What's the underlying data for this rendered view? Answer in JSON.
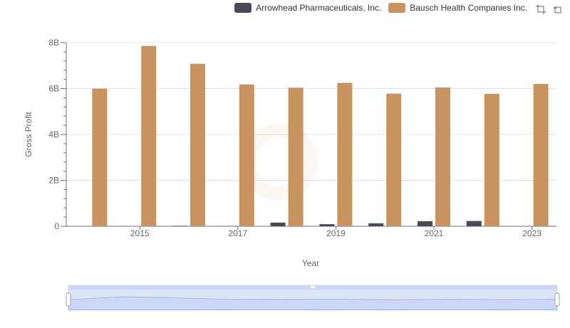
{
  "chart_data": {
    "type": "bar",
    "ylabel": "Gross Profit",
    "xlabel": "Year",
    "categories": [
      "2014",
      "2015",
      "2016",
      "2017",
      "2018",
      "2019",
      "2020",
      "2021",
      "2022",
      "2023"
    ],
    "x_tick_labels": [
      "2015",
      "2017",
      "2019",
      "2021",
      "2023"
    ],
    "y_tick_labels": [
      "0",
      "2B",
      "4B",
      "6B",
      "8B"
    ],
    "ylim": [
      0,
      8000000000
    ],
    "series": [
      {
        "name": "Arrowhead Pharmaceuticals, Inc.",
        "color": "#4a4a56",
        "values": [
          0,
          0,
          20000000,
          10000000,
          160000000,
          90000000,
          130000000,
          220000000,
          230000000,
          0
        ]
      },
      {
        "name": "Bausch Health Companies Inc.",
        "color": "#c9935f",
        "values": [
          6000000000,
          7860000000,
          7080000000,
          6180000000,
          6040000000,
          6250000000,
          5780000000,
          6050000000,
          5770000000,
          6200000000
        ]
      }
    ],
    "legend_position": "top-right",
    "grid": true
  },
  "legend": {
    "items": [
      {
        "label": "Arrowhead Pharmaceuticals, Inc.",
        "color": "#4a4a56"
      },
      {
        "label": "Bausch Health Companies Inc.",
        "color": "#c9935f"
      }
    ]
  },
  "toolbox": {
    "icons": [
      "zoom-icon",
      "restore-icon"
    ]
  }
}
